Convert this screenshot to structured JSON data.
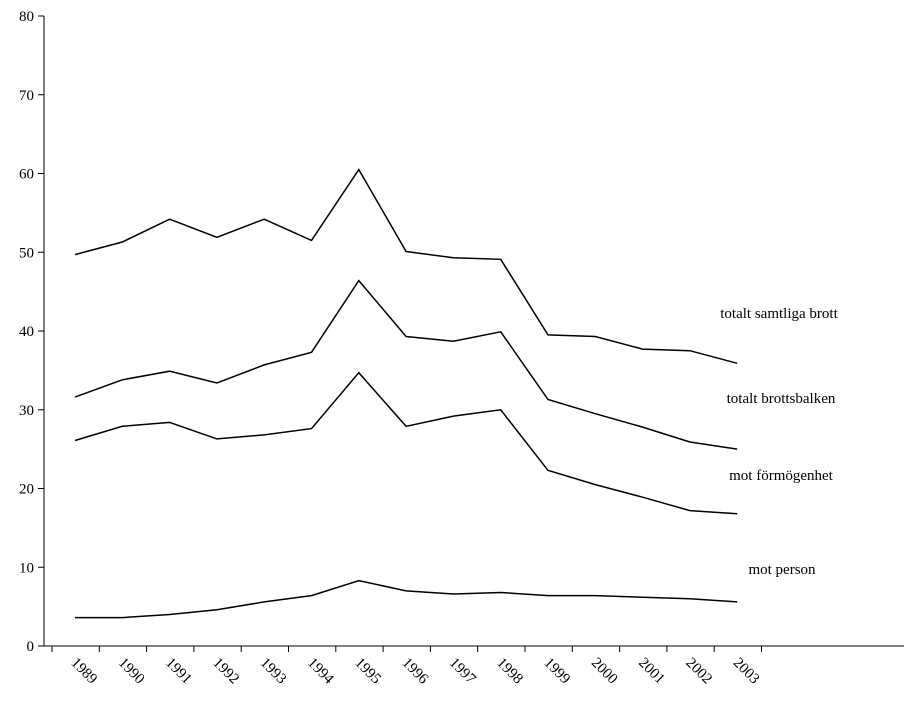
{
  "chart_data": {
    "type": "line",
    "title": "",
    "xlabel": "",
    "ylabel": "",
    "ylim": [
      0,
      80
    ],
    "yticks": [
      0,
      10,
      20,
      30,
      40,
      50,
      60,
      70,
      80
    ],
    "grid": false,
    "legend": "none; series labelled directly at right end of lines",
    "x": [
      "1989",
      "1990",
      "1991",
      "1992",
      "1993",
      "1994",
      "1995",
      "1996",
      "1997",
      "1998",
      "1999",
      "2000",
      "2001",
      "2002",
      "2003"
    ],
    "series": [
      {
        "name": "totalt samtliga brott",
        "values": [
          49.7,
          51.3,
          54.2,
          51.9,
          54.2,
          51.5,
          60.5,
          50.1,
          49.3,
          49.1,
          39.5,
          39.3,
          37.7,
          37.5,
          35.9
        ]
      },
      {
        "name": "totalt brottsbalken",
        "values": [
          31.6,
          33.8,
          34.9,
          33.4,
          35.7,
          37.3,
          46.4,
          39.3,
          38.7,
          39.9,
          31.3,
          29.5,
          27.8,
          25.9,
          25.0
        ]
      },
      {
        "name": "mot förmögenhet",
        "values": [
          26.1,
          27.9,
          28.4,
          26.3,
          26.8,
          27.6,
          34.7,
          27.9,
          29.2,
          30.0,
          22.3,
          20.5,
          18.9,
          17.2,
          16.8
        ]
      },
      {
        "name": "mot person",
        "values": [
          3.6,
          3.6,
          4.0,
          4.6,
          5.6,
          6.4,
          8.3,
          7.0,
          6.6,
          6.8,
          6.4,
          6.4,
          6.2,
          6.0,
          5.6
        ]
      }
    ]
  }
}
